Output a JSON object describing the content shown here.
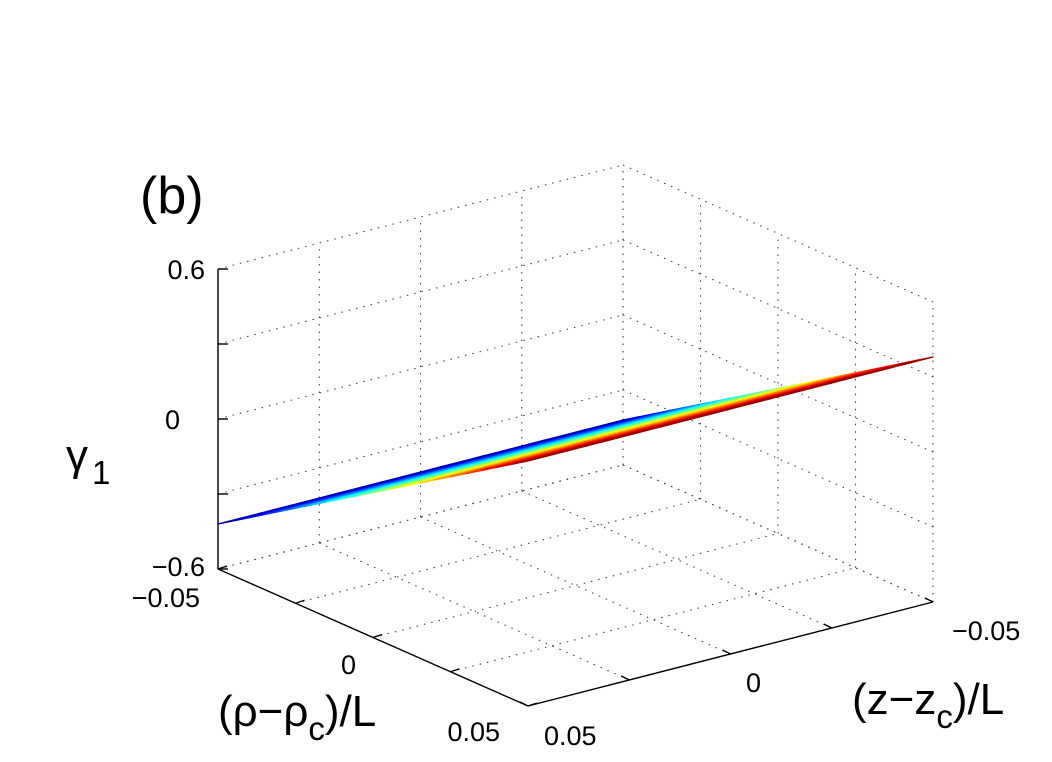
{
  "panel_label": "(b)",
  "chart_data": {
    "type": "surface",
    "title": "",
    "zlabel": "γ1",
    "zlabel_parts": {
      "main": "γ",
      "sub": "1"
    },
    "ylabel": "(ρ−ρc)/L",
    "ylabel_parts": {
      "pre": "(ρ−ρ",
      "sub": "c",
      "post": ")/L"
    },
    "xlabel": "(z−zc)/L",
    "xlabel_parts": {
      "pre": "(z−z",
      "sub": "c",
      "post": ")/L"
    },
    "zlim": [
      -0.6,
      0.6
    ],
    "rho_lim": [
      -0.05,
      0.05
    ],
    "z_lim": [
      -0.05,
      0.05
    ],
    "zticks": [
      {
        "value": -0.6,
        "label": "−0.6"
      },
      {
        "value": 0,
        "label": "0"
      },
      {
        "value": 0.6,
        "label": "0.6"
      }
    ],
    "rho_ticks": [
      {
        "value": -0.05,
        "label": "−0.05"
      },
      {
        "value": 0,
        "label": "0"
      },
      {
        "value": 0.05,
        "label": "0.05"
      }
    ],
    "z_ticks": [
      {
        "value": -0.05,
        "label": "−0.05"
      },
      {
        "value": 0,
        "label": "0"
      },
      {
        "value": 0.05,
        "label": "0.05"
      }
    ],
    "grid": true,
    "mesh": {
      "rows": 20,
      "cols": 20
    },
    "surface_model": "gamma1 = -0.02 + 8 * (rho - rho_c)/L",
    "gamma_range": [
      -0.42,
      0.38
    ],
    "colormap": "jet"
  }
}
